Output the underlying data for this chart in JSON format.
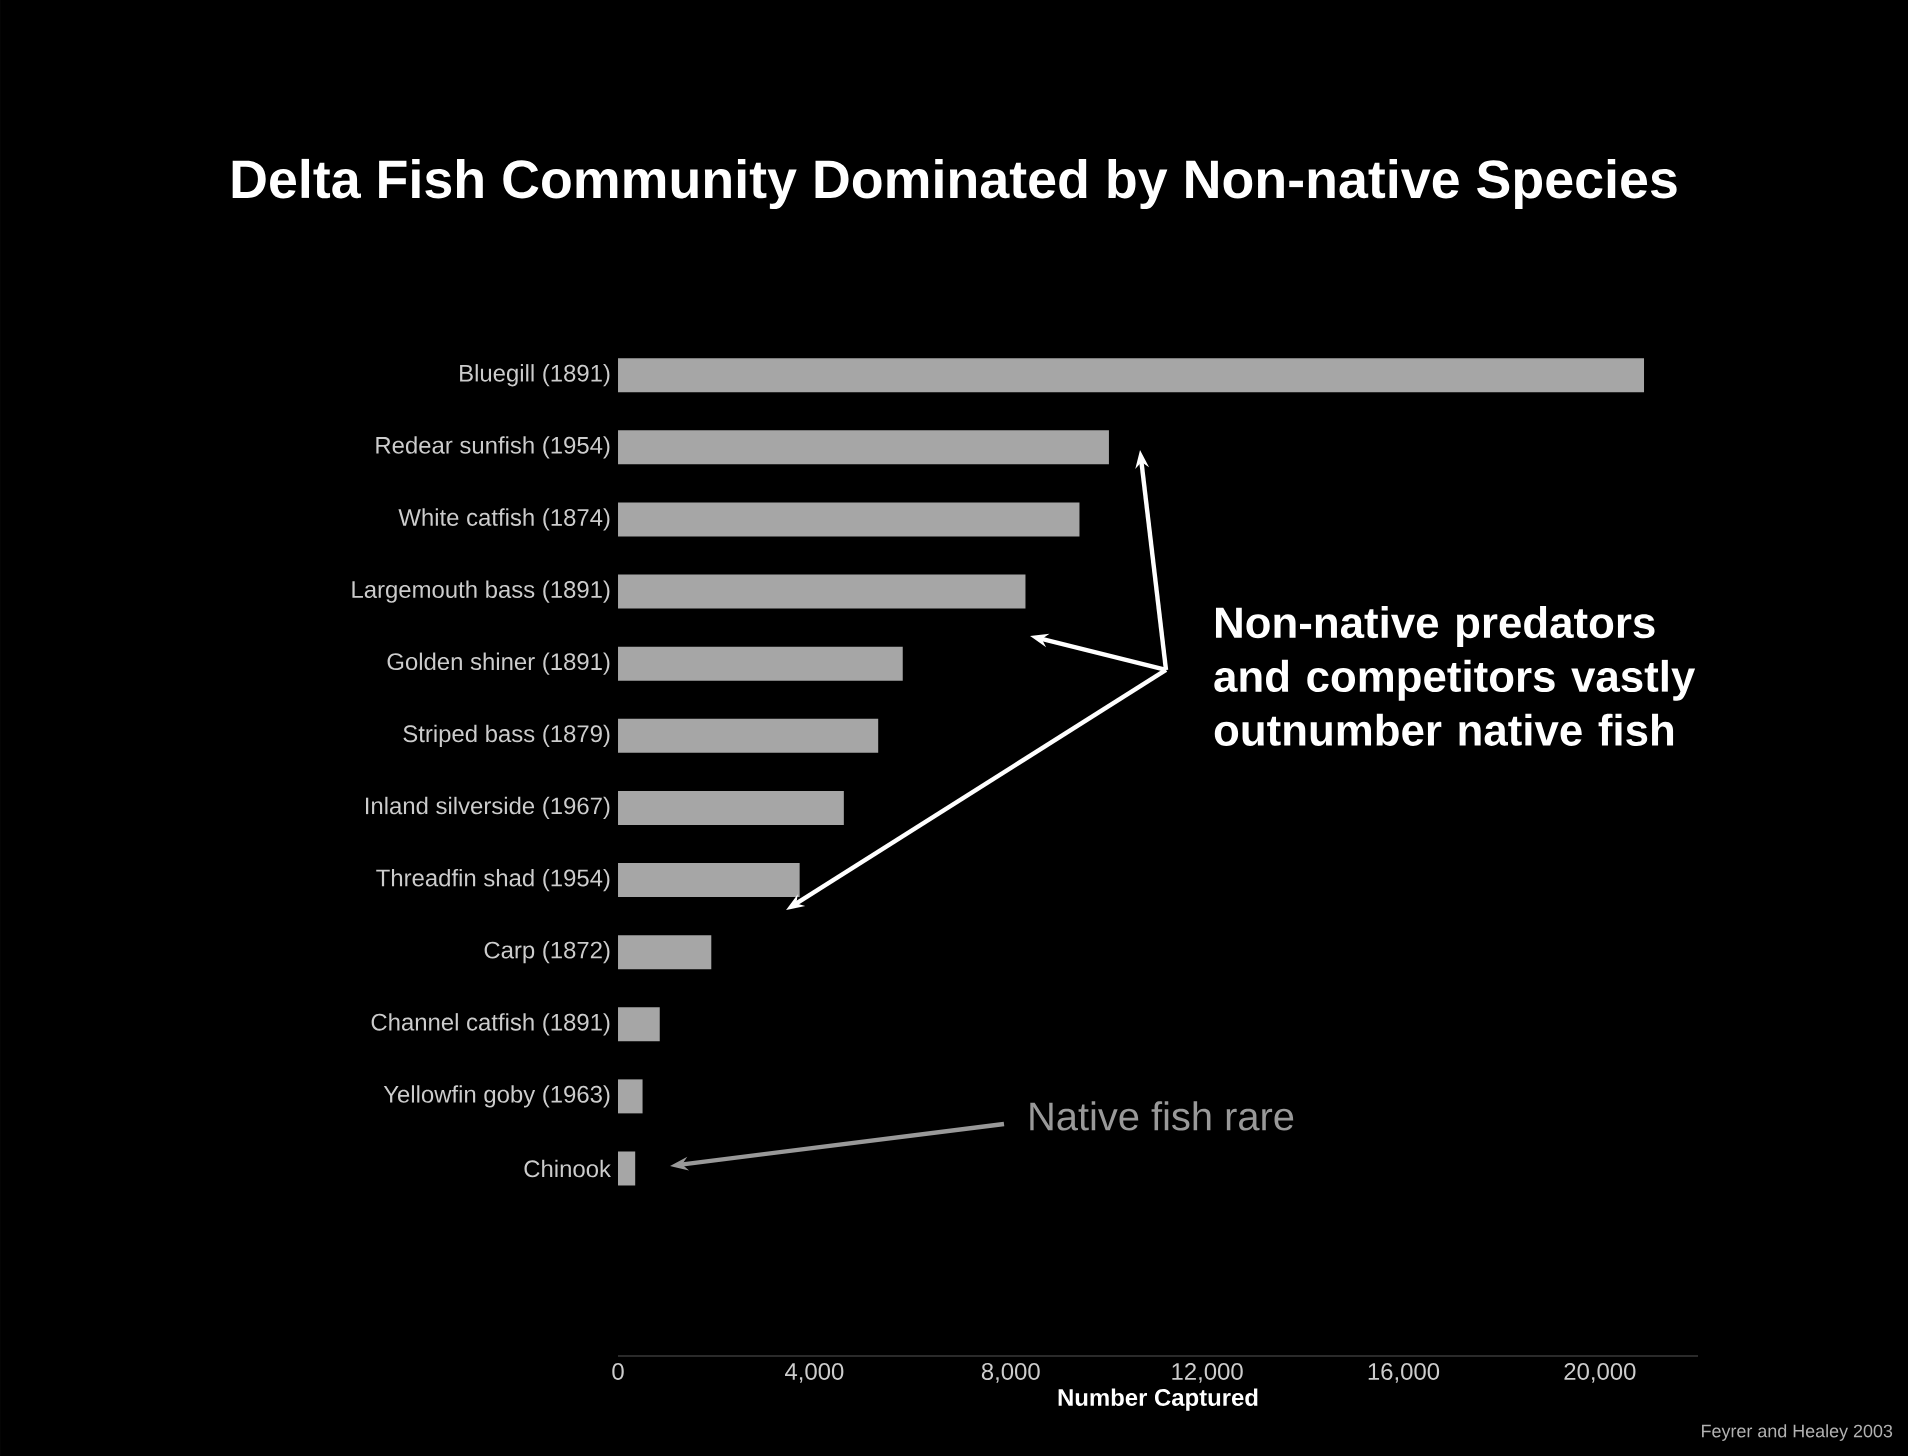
{
  "chart_data": {
    "type": "bar",
    "orientation": "horizontal",
    "title": "Delta Fish Community Dominated by Non-native Species",
    "xlabel": "Number Captured",
    "categories": [
      "Bluegill (1891)",
      "Redear sunfish (1954)",
      "White catfish (1874)",
      "Largemouth bass (1891)",
      "Golden shiner (1891)",
      "Striped bass (1879)",
      "Inland silverside (1967)",
      "Threadfin shad (1954)",
      "Carp (1872)",
      "Channel catfish (1891)",
      "Yellowfin goby (1963)",
      "Chinook"
    ],
    "values": [
      20900,
      10000,
      9400,
      8300,
      5800,
      5300,
      4600,
      3700,
      1900,
      850,
      500,
      350
    ],
    "color": "#a6a6a6",
    "xlim": [
      0,
      22000
    ],
    "xticks": [
      0,
      {
        "value": 4000,
        "label": "4,000"
      },
      {
        "value": 8000,
        "label": "8,000"
      },
      {
        "value": 12000,
        "label": "12,000"
      },
      {
        "value": 16000,
        "label": "16,000"
      },
      {
        "value": 20000,
        "label": "20,000"
      }
    ],
    "annotations": [
      "Non-native predators and competitors vastly outnumber native fish",
      "Native fish rare",
      "Feyrer and Healey 2003"
    ]
  }
}
